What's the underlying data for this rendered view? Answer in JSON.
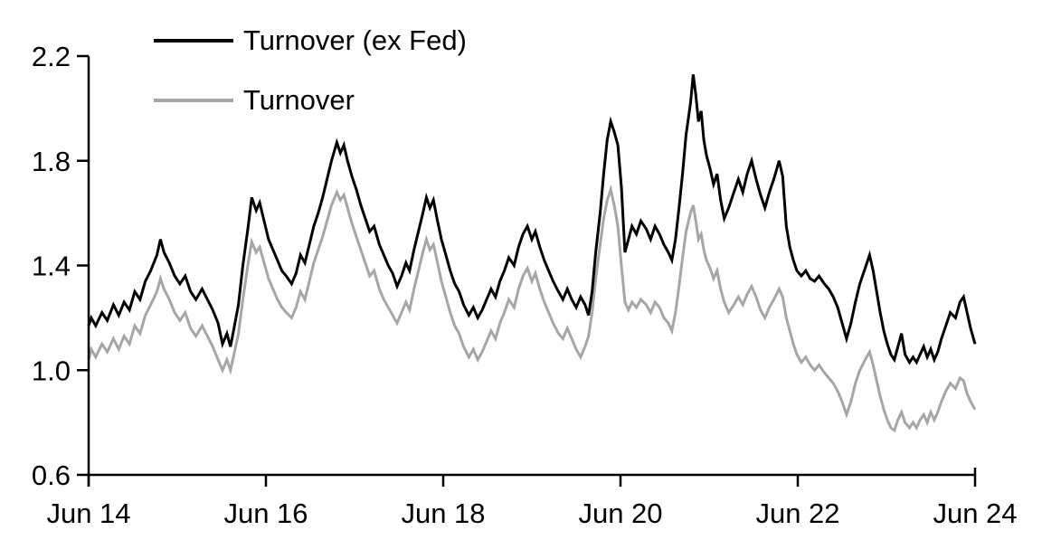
{
  "chart_data": {
    "type": "line",
    "title": "",
    "xlabel": "",
    "ylabel": "",
    "grid": false,
    "legend_position": "top-left-inside",
    "x_axis": {
      "unit": "years since Jun 2014",
      "range": [
        0,
        10
      ],
      "tick_positions": [
        0,
        2,
        4,
        6,
        8,
        10
      ],
      "tick_labels": [
        "Jun 14",
        "Jun 16",
        "Jun 18",
        "Jun 20",
        "Jun 22",
        "Jun 24"
      ]
    },
    "y_axis": {
      "range": [
        0.6,
        2.2
      ],
      "tick_interval": 0.4,
      "tick_values": [
        2.2,
        1.8,
        1.4,
        1.0,
        0.6
      ],
      "tick_labels": [
        "2.2",
        "1.8",
        "1.4",
        "1.0",
        "0.6"
      ]
    },
    "axis_color": "#000000",
    "x": [
      0,
      0.03,
      0.08,
      0.15,
      0.21,
      0.28,
      0.34,
      0.4,
      0.46,
      0.52,
      0.58,
      0.64,
      0.7,
      0.77,
      0.81,
      0.85,
      0.91,
      0.97,
      1.03,
      1.09,
      1.15,
      1.21,
      1.28,
      1.34,
      1.4,
      1.46,
      1.51,
      1.56,
      1.6,
      1.64,
      1.69,
      1.74,
      1.8,
      1.84,
      1.89,
      1.93,
      1.98,
      2.03,
      2.08,
      2.13,
      2.18,
      2.23,
      2.29,
      2.34,
      2.39,
      2.44,
      2.49,
      2.54,
      2.59,
      2.64,
      2.69,
      2.74,
      2.8,
      2.84,
      2.88,
      2.92,
      2.97,
      3.02,
      3.07,
      3.12,
      3.17,
      3.22,
      3.28,
      3.33,
      3.38,
      3.43,
      3.48,
      3.53,
      3.58,
      3.62,
      3.67,
      3.72,
      3.77,
      3.81,
      3.85,
      3.89,
      3.93,
      3.98,
      4.03,
      4.08,
      4.13,
      4.18,
      4.23,
      4.29,
      4.34,
      4.39,
      4.44,
      4.49,
      4.54,
      4.59,
      4.64,
      4.69,
      4.74,
      4.8,
      4.85,
      4.9,
      4.95,
      5.0,
      5.04,
      5.09,
      5.14,
      5.19,
      5.24,
      5.3,
      5.35,
      5.4,
      5.45,
      5.5,
      5.55,
      5.6,
      5.64,
      5.68,
      5.72,
      5.77,
      5.81,
      5.85,
      5.89,
      5.93,
      5.97,
      6.01,
      6.05,
      6.09,
      6.13,
      6.18,
      6.23,
      6.29,
      6.34,
      6.39,
      6.44,
      6.49,
      6.54,
      6.58,
      6.62,
      6.66,
      6.7,
      6.74,
      6.79,
      6.82,
      6.85,
      6.88,
      6.91,
      6.94,
      6.97,
      7.01,
      7.05,
      7.09,
      7.13,
      7.17,
      7.22,
      7.28,
      7.33,
      7.38,
      7.43,
      7.48,
      7.53,
      7.58,
      7.63,
      7.68,
      7.73,
      7.79,
      7.83,
      7.87,
      7.91,
      7.95,
      7.99,
      8.04,
      8.09,
      8.14,
      8.19,
      8.24,
      8.3,
      8.35,
      8.4,
      8.45,
      8.5,
      8.55,
      8.6,
      8.65,
      8.7,
      8.76,
      8.81,
      8.85,
      8.89,
      8.93,
      8.97,
      9.01,
      9.05,
      9.09,
      9.13,
      9.17,
      9.21,
      9.26,
      9.3,
      9.34,
      9.38,
      9.42,
      9.46,
      9.5,
      9.54,
      9.58,
      9.62,
      9.67,
      9.72,
      9.78,
      9.83,
      9.87,
      9.91,
      9.95,
      10.0
    ],
    "series": [
      {
        "name": "Turnover (ex Fed)",
        "color": "#000000",
        "values": [
          1.17,
          1.2,
          1.17,
          1.22,
          1.19,
          1.25,
          1.21,
          1.26,
          1.23,
          1.3,
          1.27,
          1.34,
          1.38,
          1.44,
          1.5,
          1.45,
          1.41,
          1.36,
          1.33,
          1.36,
          1.3,
          1.27,
          1.31,
          1.27,
          1.23,
          1.18,
          1.1,
          1.14,
          1.09,
          1.16,
          1.25,
          1.4,
          1.55,
          1.66,
          1.61,
          1.64,
          1.57,
          1.5,
          1.46,
          1.42,
          1.38,
          1.36,
          1.33,
          1.37,
          1.44,
          1.41,
          1.48,
          1.55,
          1.6,
          1.66,
          1.73,
          1.8,
          1.87,
          1.83,
          1.86,
          1.8,
          1.74,
          1.69,
          1.63,
          1.58,
          1.53,
          1.55,
          1.48,
          1.44,
          1.4,
          1.37,
          1.32,
          1.36,
          1.41,
          1.38,
          1.46,
          1.53,
          1.6,
          1.66,
          1.62,
          1.65,
          1.58,
          1.5,
          1.44,
          1.38,
          1.33,
          1.3,
          1.25,
          1.21,
          1.24,
          1.2,
          1.23,
          1.27,
          1.31,
          1.28,
          1.34,
          1.38,
          1.43,
          1.4,
          1.47,
          1.52,
          1.55,
          1.5,
          1.53,
          1.47,
          1.42,
          1.38,
          1.34,
          1.3,
          1.27,
          1.31,
          1.27,
          1.24,
          1.28,
          1.25,
          1.21,
          1.3,
          1.45,
          1.6,
          1.75,
          1.88,
          1.95,
          1.91,
          1.86,
          1.7,
          1.45,
          1.5,
          1.55,
          1.52,
          1.57,
          1.54,
          1.5,
          1.55,
          1.52,
          1.48,
          1.45,
          1.42,
          1.5,
          1.62,
          1.75,
          1.9,
          2.02,
          2.13,
          2.05,
          1.95,
          1.99,
          1.88,
          1.82,
          1.77,
          1.71,
          1.75,
          1.65,
          1.58,
          1.62,
          1.68,
          1.73,
          1.68,
          1.75,
          1.8,
          1.73,
          1.67,
          1.62,
          1.68,
          1.73,
          1.8,
          1.74,
          1.55,
          1.47,
          1.42,
          1.38,
          1.36,
          1.38,
          1.35,
          1.34,
          1.36,
          1.33,
          1.31,
          1.28,
          1.24,
          1.18,
          1.12,
          1.18,
          1.26,
          1.33,
          1.39,
          1.44,
          1.38,
          1.3,
          1.22,
          1.15,
          1.1,
          1.06,
          1.04,
          1.09,
          1.14,
          1.06,
          1.03,
          1.05,
          1.03,
          1.06,
          1.09,
          1.05,
          1.08,
          1.04,
          1.07,
          1.12,
          1.17,
          1.22,
          1.2,
          1.26,
          1.28,
          1.22,
          1.16,
          1.1
        ]
      },
      {
        "name": "Turnover",
        "color": "#a6a6a6",
        "values": [
          1.04,
          1.08,
          1.05,
          1.1,
          1.07,
          1.12,
          1.08,
          1.13,
          1.1,
          1.17,
          1.14,
          1.21,
          1.25,
          1.3,
          1.35,
          1.31,
          1.27,
          1.22,
          1.19,
          1.22,
          1.16,
          1.13,
          1.17,
          1.13,
          1.09,
          1.04,
          1.0,
          1.04,
          1.0,
          1.06,
          1.14,
          1.27,
          1.41,
          1.49,
          1.45,
          1.47,
          1.41,
          1.35,
          1.31,
          1.27,
          1.24,
          1.22,
          1.2,
          1.24,
          1.3,
          1.27,
          1.34,
          1.41,
          1.46,
          1.51,
          1.57,
          1.63,
          1.68,
          1.65,
          1.67,
          1.62,
          1.56,
          1.51,
          1.46,
          1.41,
          1.36,
          1.38,
          1.31,
          1.27,
          1.24,
          1.21,
          1.18,
          1.22,
          1.26,
          1.23,
          1.31,
          1.38,
          1.45,
          1.5,
          1.46,
          1.48,
          1.42,
          1.34,
          1.28,
          1.22,
          1.17,
          1.14,
          1.09,
          1.05,
          1.08,
          1.04,
          1.07,
          1.11,
          1.15,
          1.12,
          1.18,
          1.22,
          1.27,
          1.24,
          1.31,
          1.36,
          1.39,
          1.34,
          1.37,
          1.31,
          1.26,
          1.22,
          1.18,
          1.14,
          1.12,
          1.16,
          1.12,
          1.08,
          1.05,
          1.09,
          1.13,
          1.22,
          1.35,
          1.48,
          1.58,
          1.65,
          1.69,
          1.63,
          1.55,
          1.4,
          1.26,
          1.23,
          1.26,
          1.24,
          1.27,
          1.25,
          1.22,
          1.26,
          1.24,
          1.2,
          1.18,
          1.15,
          1.22,
          1.32,
          1.43,
          1.53,
          1.6,
          1.63,
          1.57,
          1.5,
          1.52,
          1.46,
          1.42,
          1.39,
          1.35,
          1.38,
          1.31,
          1.26,
          1.22,
          1.25,
          1.28,
          1.25,
          1.29,
          1.32,
          1.28,
          1.23,
          1.2,
          1.24,
          1.27,
          1.31,
          1.28,
          1.2,
          1.15,
          1.1,
          1.06,
          1.03,
          1.05,
          1.02,
          1.0,
          1.02,
          0.99,
          0.97,
          0.95,
          0.92,
          0.88,
          0.83,
          0.88,
          0.95,
          1.0,
          1.04,
          1.07,
          1.02,
          0.96,
          0.9,
          0.85,
          0.81,
          0.78,
          0.77,
          0.81,
          0.84,
          0.8,
          0.78,
          0.8,
          0.78,
          0.81,
          0.83,
          0.8,
          0.84,
          0.81,
          0.84,
          0.88,
          0.92,
          0.95,
          0.93,
          0.97,
          0.96,
          0.91,
          0.88,
          0.85
        ]
      }
    ]
  },
  "legend": {
    "items": [
      {
        "label": "Turnover (ex Fed)",
        "color": "#000000"
      },
      {
        "label": "Turnover",
        "color": "#a6a6a6"
      }
    ]
  }
}
